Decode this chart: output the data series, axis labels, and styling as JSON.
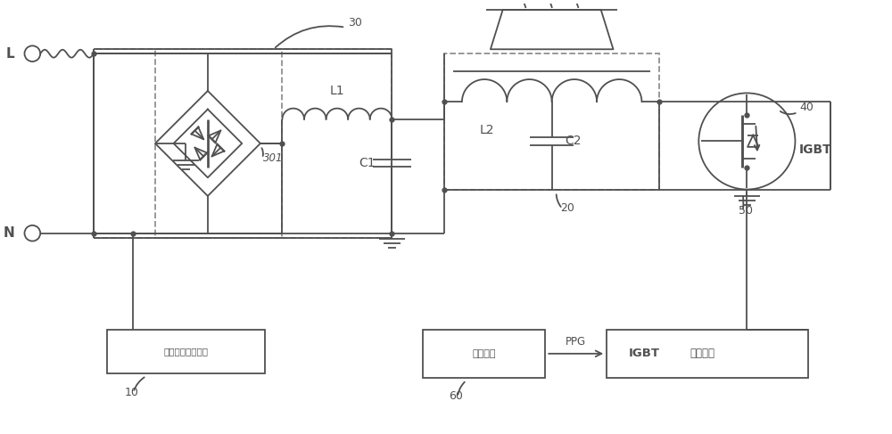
{
  "bg_color": "#ffffff",
  "line_color": "#505050",
  "dashed_color": "#909090",
  "line_width": 1.3,
  "fig_width": 10.0,
  "fig_height": 4.87,
  "labels": {
    "L": "L",
    "N": "N",
    "L1": "L1",
    "L2": "L2",
    "C1": "C1",
    "C2": "C2",
    "IGBT": "IGBT",
    "label_10": "10",
    "label_20": "20",
    "label_30": "30",
    "label_40": "40",
    "label_50": "50",
    "label_60": "60",
    "label_301": "301",
    "zero_detect": "电压过零检测单元",
    "main_chip": "主控芒片",
    "igbt_drive": "IGBT驱动单元",
    "PPG": "PPG"
  }
}
